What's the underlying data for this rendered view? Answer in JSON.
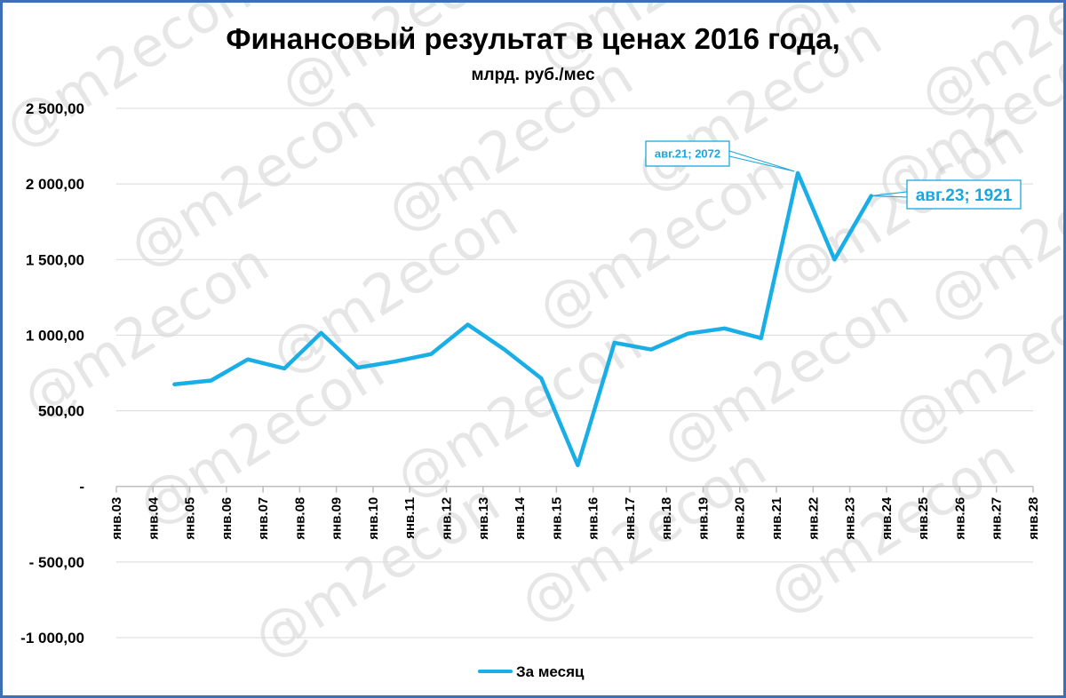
{
  "watermark_text": "@m2econ",
  "colors": {
    "line": "#1aaee6",
    "grid": "#d9d9d9",
    "axis": "#bfbfbf",
    "frame": "#3d6fb6",
    "label": "#1aa7df"
  },
  "chart_data": {
    "type": "line",
    "title": "Финансовый результат в ценах 2016 года,",
    "subtitle": "млрд. руб./мес",
    "ylim": [
      -1000,
      2500
    ],
    "yticks": [
      2500,
      2000,
      1500,
      1000,
      500,
      0,
      -500,
      -1000
    ],
    "ytick_labels": [
      "2 500,00",
      "2 000,00",
      "1 500,00",
      "1 000,00",
      "500,00",
      "-",
      "- 500,00",
      "-1 000,00"
    ],
    "categories": [
      "янв.03",
      "янв.04",
      "янв.05",
      "янв.06",
      "янв.07",
      "янв.08",
      "янв.09",
      "янв.10",
      "янв.11",
      "янв.12",
      "янв.13",
      "янв.14",
      "янв.15",
      "янв.16",
      "янв.17",
      "янв.18",
      "янв.19",
      "янв.20",
      "янв.21",
      "янв.22",
      "янв.23",
      "янв.24",
      "янв.25",
      "янв.26",
      "янв.27",
      "янв.28"
    ],
    "grid": true,
    "legend_position": "bottom",
    "series": [
      {
        "name": "За месяц",
        "x": [
          "авг.04",
          "авг.05",
          "авг.06",
          "авг.07",
          "авг.08",
          "авг.09",
          "авг.10",
          "авг.11",
          "авг.12",
          "авг.13",
          "авг.14",
          "авг.15",
          "авг.16",
          "авг.17",
          "авг.18",
          "авг.19",
          "авг.20",
          "авг.21",
          "авг.22",
          "авг.23"
        ],
        "values": [
          675,
          700,
          840,
          780,
          1015,
          785,
          825,
          875,
          1070,
          905,
          715,
          140,
          950,
          905,
          1010,
          1045,
          980,
          2072,
          1500,
          1921
        ]
      }
    ],
    "annotations": [
      {
        "series_index": 0,
        "point_index": 17,
        "text": "авг.21; 2072"
      },
      {
        "series_index": 0,
        "point_index": 19,
        "text": "авг.23; 1921"
      }
    ]
  }
}
